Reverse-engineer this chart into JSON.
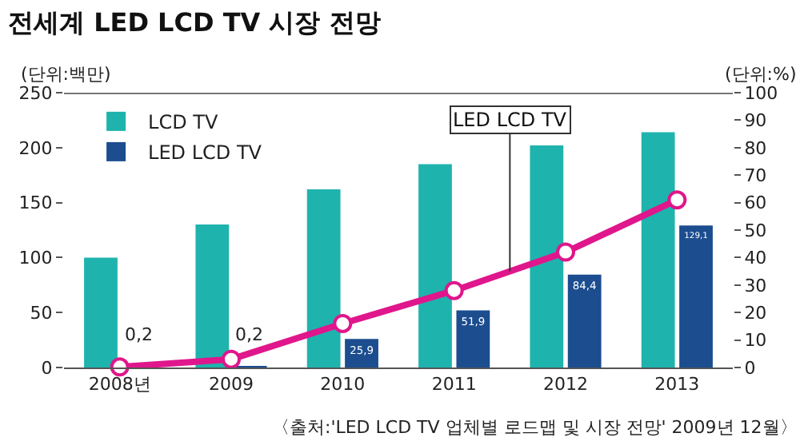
{
  "chart_data": {
    "type": "bar",
    "title": "전세계 LED LCD TV 시장 전망",
    "ylabel": "(단위:백만)",
    "y2label": "(단위:%)",
    "categories": [
      "2008년",
      "2009",
      "2010",
      "2011",
      "2012",
      "2013"
    ],
    "series": [
      {
        "name": "LCD TV",
        "color": "#1fb3ae",
        "values": [
          100,
          130,
          162,
          185,
          202,
          214
        ]
      },
      {
        "name": "LED LCD TV",
        "color": "#1b4d8f",
        "values": [
          0.2,
          0.2,
          25.9,
          51.9,
          84.4,
          129.1
        ],
        "value_labels": [
          "0,2",
          "0,2",
          "25,9",
          "51,9",
          "84,4",
          "129,1"
        ]
      },
      {
        "name": "LED LCD TV",
        "type": "line",
        "axis": "y2",
        "color": "#e0168c",
        "marker": "circle",
        "values": [
          0.2,
          3,
          16,
          28,
          42,
          61
        ]
      }
    ],
    "ylim": [
      0,
      250
    ],
    "yticks": [
      0,
      50,
      100,
      150,
      200,
      250
    ],
    "y2lim": [
      0,
      100
    ],
    "y2ticks": [
      0,
      10,
      20,
      30,
      40,
      50,
      60,
      70,
      80,
      90,
      100
    ],
    "legend": "top left",
    "annotations": [
      "〈출처:'LED LCD TV 업체별 로드맵 및 시장 전망' 2009년 12월〉"
    ]
  }
}
